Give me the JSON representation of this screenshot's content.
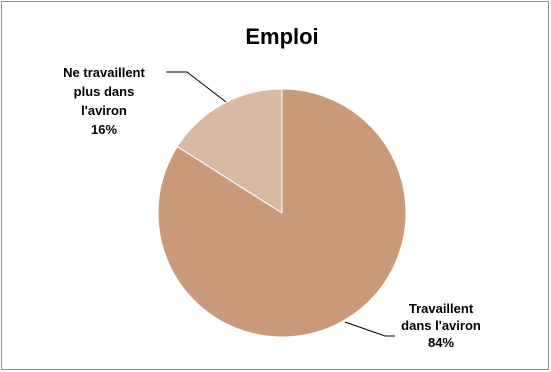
{
  "chart_data": {
    "type": "pie",
    "title": "Emploi",
    "categories": [
      "Travaillent dans l'aviron",
      "Ne travaillent plus dans l'aviron"
    ],
    "values": [
      84,
      16
    ],
    "colors": [
      "#c9997a",
      "#d9b9a4"
    ],
    "slices": [
      {
        "label_lines": [
          "Travaillent",
          "dans l'aviron"
        ],
        "percent_label": "84%",
        "value": 84,
        "color": "#c9997a"
      },
      {
        "label_lines": [
          "Ne travaillent",
          "plus dans",
          "l'aviron"
        ],
        "percent_label": "16%",
        "value": 16,
        "color": "#d9b9a4"
      }
    ],
    "start_angle_deg": 0,
    "direction": "clockwise",
    "legend": "none"
  }
}
